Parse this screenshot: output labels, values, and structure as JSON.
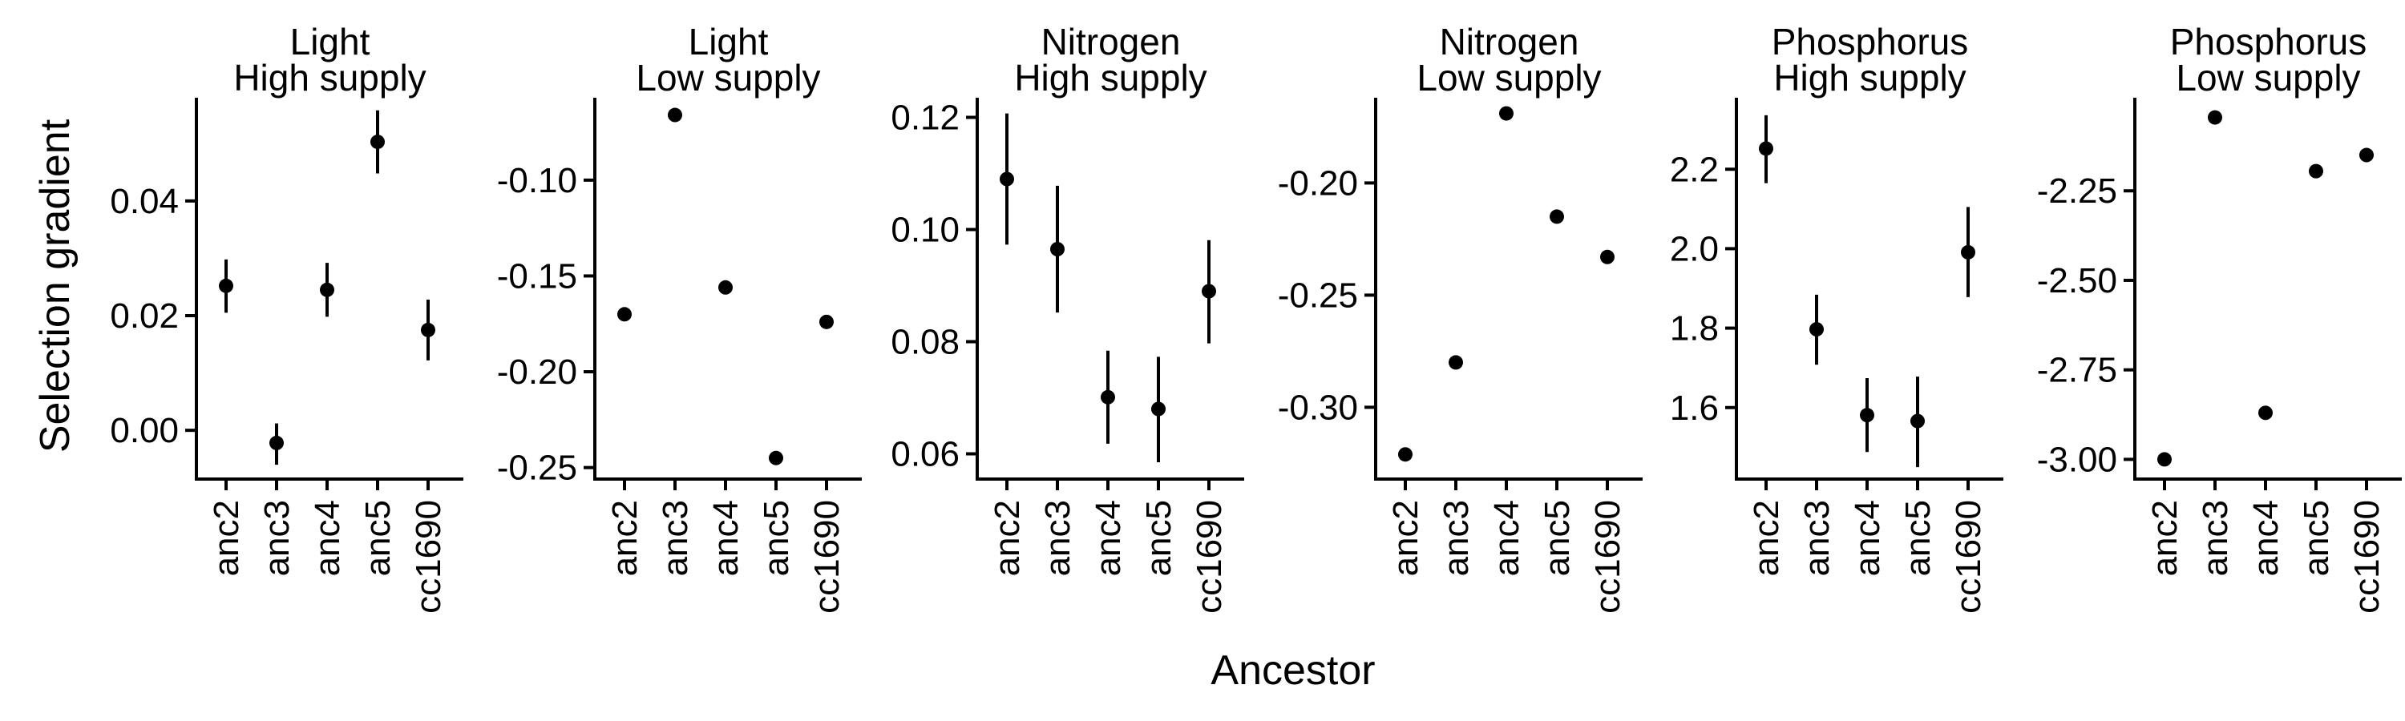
{
  "chart_data": {
    "type": "scatter",
    "xlabel": "Ancestor",
    "ylabel": "Selection gradient",
    "categories": [
      "anc2",
      "anc3",
      "anc4",
      "anc5",
      "cc1690"
    ],
    "panels": [
      {
        "title_line1": "Light",
        "title_line2": "High supply",
        "ylim": [
          -0.0085,
          0.058
        ],
        "yticks": [
          0.0,
          0.02,
          0.04
        ],
        "ytick_labels": [
          "0.00",
          "0.02",
          "0.04"
        ],
        "values": [
          0.0252,
          -0.0022,
          0.0245,
          0.0503,
          0.0175
        ],
        "lower": [
          0.0205,
          -0.006,
          0.0198,
          0.0448,
          0.0122
        ],
        "upper": [
          0.0298,
          0.0012,
          0.0292,
          0.0558,
          0.0228
        ]
      },
      {
        "title_line1": "Light",
        "title_line2": "Low supply",
        "ylim": [
          -0.256,
          -0.057
        ],
        "yticks": [
          -0.25,
          -0.2,
          -0.15,
          -0.1
        ],
        "ytick_labels": [
          "-0.25",
          "-0.20",
          "-0.15",
          "-0.10"
        ],
        "values": [
          -0.17,
          -0.066,
          -0.156,
          -0.245,
          -0.174
        ],
        "lower": [
          -0.17,
          -0.066,
          -0.156,
          -0.245,
          -0.174
        ],
        "upper": [
          -0.17,
          -0.066,
          -0.156,
          -0.245,
          -0.174
        ]
      },
      {
        "title_line1": "Nitrogen",
        "title_line2": "High supply",
        "ylim": [
          0.0555,
          0.1235
        ],
        "yticks": [
          0.06,
          0.08,
          0.1,
          0.12
        ],
        "ytick_labels": [
          "0.06",
          "0.08",
          "0.10",
          "0.12"
        ],
        "values": [
          0.109,
          0.0965,
          0.0701,
          0.068,
          0.089
        ],
        "lower": [
          0.0973,
          0.0852,
          0.0618,
          0.0585,
          0.0797
        ],
        "upper": [
          0.1207,
          0.1078,
          0.0784,
          0.0773,
          0.0981
        ]
      },
      {
        "title_line1": "Nitrogen",
        "title_line2": "Low supply",
        "ylim": [
          -0.332,
          -0.162
        ],
        "yticks": [
          -0.3,
          -0.25,
          -0.2
        ],
        "ytick_labels": [
          "-0.30",
          "-0.25",
          "-0.20"
        ],
        "values": [
          -0.321,
          -0.28,
          -0.169,
          -0.215,
          -0.233
        ],
        "lower": [
          -0.321,
          -0.28,
          -0.169,
          -0.215,
          -0.233
        ],
        "upper": [
          -0.321,
          -0.28,
          -0.169,
          -0.215,
          -0.233
        ]
      },
      {
        "title_line1": "Phosphorus",
        "title_line2": "High supply",
        "ylim": [
          1.42,
          2.38
        ],
        "yticks": [
          1.6,
          1.8,
          2.0,
          2.2
        ],
        "ytick_labels": [
          "1.6",
          "1.8",
          "2.0",
          "2.2"
        ],
        "values": [
          2.252,
          1.797,
          1.581,
          1.566,
          1.991
        ],
        "lower": [
          2.165,
          1.708,
          1.488,
          1.45,
          1.878
        ],
        "upper": [
          2.336,
          1.884,
          1.674,
          1.678,
          2.105
        ]
      },
      {
        "title_line1": "Phosphorus",
        "title_line2": "Low supply",
        "ylim": [
          -3.055,
          -1.99
        ],
        "yticks": [
          -3.0,
          -2.75,
          -2.5,
          -2.25
        ],
        "ytick_labels": [
          "-3.00",
          "-2.75",
          "-2.50",
          "-2.25"
        ],
        "values": [
          -3.0,
          -2.045,
          -2.87,
          -2.195,
          -2.15
        ],
        "lower": [
          -3.0,
          -2.045,
          -2.87,
          -2.195,
          -2.15
        ],
        "upper": [
          -3.0,
          -2.045,
          -2.87,
          -2.195,
          -2.15
        ]
      }
    ]
  }
}
